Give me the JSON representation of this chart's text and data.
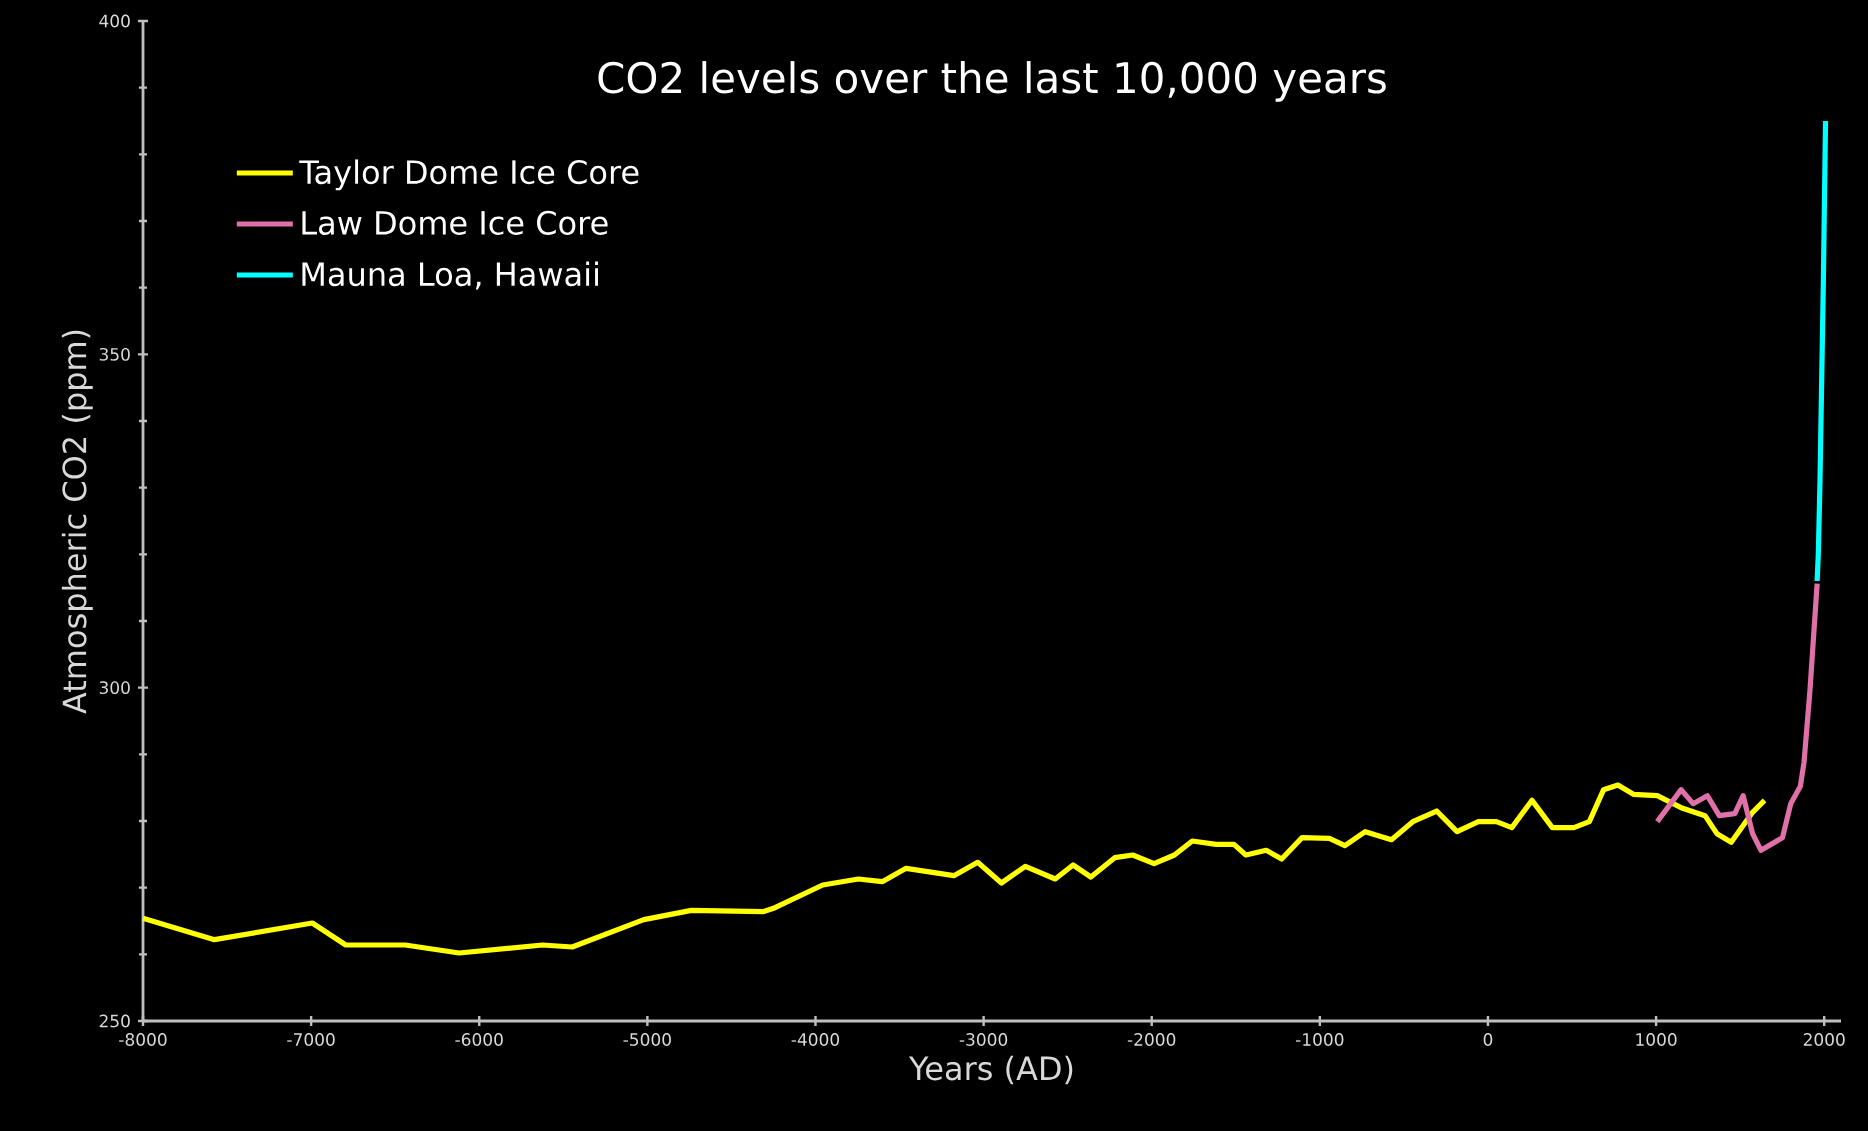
{
  "chart_data": {
    "type": "line",
    "title": "CO2 levels over the last 10,000 years",
    "xlabel": "Years (AD)",
    "ylabel": "Atmospheric CO2 (ppm)",
    "xlim": [
      -8000,
      2100
    ],
    "xticks": [
      -8000,
      -7000,
      -6000,
      -5000,
      -4000,
      -3000,
      -2000,
      -1000,
      0,
      1000,
      2000
    ],
    "ylim": [
      250,
      400
    ],
    "yticks": [
      250,
      300,
      350,
      400
    ],
    "legend": "top left",
    "marker": "none",
    "line_style": "solid",
    "series": [
      {
        "name": "Taylor Dome Ice Core",
        "color": "#ffff00",
        "x": [
          -8000,
          -7575,
          -6993,
          -6794,
          -6440,
          -6120,
          -5624,
          -5447,
          -5021,
          -4738,
          -4312,
          -4241,
          -3957,
          -3745,
          -3603,
          -3461,
          -3177,
          -3035,
          -2894,
          -2752,
          -2574,
          -2468,
          -2362,
          -2220,
          -2113,
          -1986,
          -1865,
          -1759,
          -1617,
          -1511,
          -1440,
          -1319,
          -1227,
          -1106,
          -943,
          -851,
          -730,
          -574,
          -447,
          -305,
          -184,
          -57,
          50,
          142,
          262,
          383,
          511,
          603,
          688,
          773,
          865,
          1007,
          1149,
          1291,
          1362,
          1447,
          1574,
          1645
        ],
        "values": [
          265.4,
          262.2,
          264.7,
          261.4,
          261.4,
          260.2,
          261.4,
          261.1,
          265.2,
          266.6,
          266.4,
          267,
          270.4,
          271.3,
          270.9,
          272.9,
          271.8,
          273.8,
          270.7,
          273.2,
          271.3,
          273.4,
          271.6,
          274.5,
          274.9,
          273.6,
          274.9,
          277,
          276.5,
          276.5,
          274.9,
          275.6,
          274.3,
          277.5,
          277.4,
          276.3,
          278.4,
          277.2,
          279.9,
          281.5,
          278.4,
          279.9,
          279.9,
          279,
          283.1,
          279,
          279,
          279.9,
          284.7,
          285.4,
          284,
          283.8,
          282,
          280.8,
          278.1,
          276.8,
          281.3,
          283.1
        ]
      },
      {
        "name": "Law Dome Ice Core",
        "color": "#e070a8",
        "x": [
          1007,
          1149,
          1220,
          1305,
          1376,
          1468,
          1518,
          1574,
          1624,
          1752,
          1801,
          1858,
          1880,
          1915,
          1958
        ],
        "values": [
          279.9,
          284.7,
          282.6,
          283.8,
          280.8,
          281.1,
          283.8,
          278.1,
          275.6,
          277.5,
          282.6,
          285.2,
          288.8,
          299.5,
          315.6
        ]
      },
      {
        "name": "Mauna Loa, Hawaii",
        "color": "#00ffff",
        "x": [
          1958,
          1965,
          1975,
          1985,
          1995,
          2008
        ],
        "values": [
          316,
          320,
          331,
          346,
          361,
          385
        ]
      }
    ]
  }
}
